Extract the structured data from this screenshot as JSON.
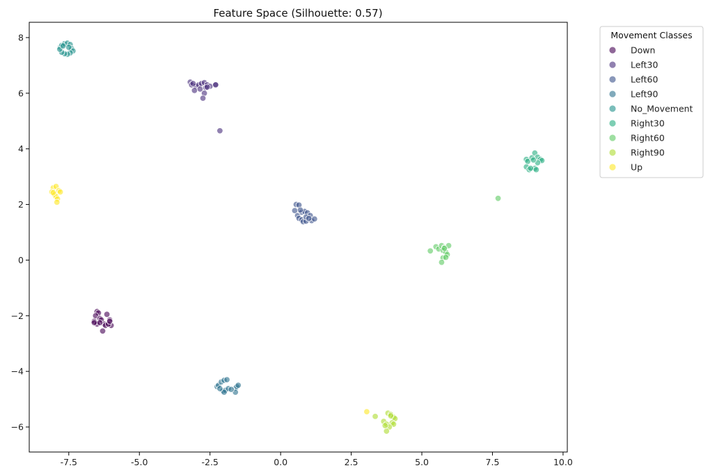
{
  "chart_data": {
    "type": "scatter",
    "title": "Feature Space (Silhouette: 0.57)",
    "xlabel": "",
    "ylabel": "",
    "xlim": [
      -8.9,
      10.15
    ],
    "ylim": [
      -6.9,
      8.55
    ],
    "xticks": [
      -7.5,
      -5.0,
      -2.5,
      0.0,
      2.5,
      5.0,
      7.5,
      10.0
    ],
    "yticks": [
      -6,
      -4,
      -2,
      0,
      2,
      4,
      6,
      8
    ],
    "grid": false,
    "legend_title": "Movement Classes",
    "legend_position": "outside-top-right",
    "series": [
      {
        "name": "Down",
        "color": "#440154",
        "points": [
          [
            -6.5,
            -1.85
          ],
          [
            -6.45,
            -1.9
          ],
          [
            -6.55,
            -2.0
          ],
          [
            -6.4,
            -2.1
          ],
          [
            -6.35,
            -2.15
          ],
          [
            -6.6,
            -2.2
          ],
          [
            -6.25,
            -2.3
          ],
          [
            -6.2,
            -2.35
          ],
          [
            -6.3,
            -2.55
          ],
          [
            -6.15,
            -1.95
          ],
          [
            -6.05,
            -2.15
          ],
          [
            -6.0,
            -2.35
          ],
          [
            -6.1,
            -2.3
          ],
          [
            -6.5,
            -2.3
          ],
          [
            -6.6,
            -2.25
          ],
          [
            -6.4,
            -2.25
          ],
          [
            -6.05,
            -2.2
          ]
        ]
      },
      {
        "name": "Left30",
        "color": "#472d7b",
        "points": [
          [
            -3.2,
            6.4
          ],
          [
            -3.15,
            6.3
          ],
          [
            -3.0,
            6.25
          ],
          [
            -2.9,
            6.3
          ],
          [
            -2.8,
            6.35
          ],
          [
            -2.7,
            6.38
          ],
          [
            -2.6,
            6.3
          ],
          [
            -2.5,
            6.25
          ],
          [
            -2.3,
            6.32
          ],
          [
            -2.3,
            6.3
          ],
          [
            -3.05,
            6.1
          ],
          [
            -2.85,
            6.15
          ],
          [
            -2.65,
            6.2
          ],
          [
            -2.7,
            6.0
          ],
          [
            -2.75,
            5.82
          ],
          [
            -2.6,
            6.22
          ],
          [
            -3.1,
            6.35
          ],
          [
            -2.15,
            4.65
          ]
        ]
      },
      {
        "name": "Left60",
        "color": "#3b528b",
        "points": [
          [
            0.55,
            2.0
          ],
          [
            0.65,
            1.98
          ],
          [
            0.5,
            1.78
          ],
          [
            0.6,
            1.6
          ],
          [
            0.65,
            1.5
          ],
          [
            0.75,
            1.45
          ],
          [
            0.8,
            1.38
          ],
          [
            0.9,
            1.4
          ],
          [
            0.75,
            1.72
          ],
          [
            0.85,
            1.75
          ],
          [
            0.95,
            1.7
          ],
          [
            1.05,
            1.6
          ],
          [
            1.1,
            1.42
          ],
          [
            1.2,
            1.48
          ],
          [
            0.7,
            1.8
          ],
          [
            0.9,
            1.55
          ],
          [
            1.0,
            1.5
          ]
        ]
      },
      {
        "name": "Left90",
        "color": "#2c728e",
        "points": [
          [
            -2.25,
            -4.55
          ],
          [
            -2.2,
            -4.5
          ],
          [
            -2.1,
            -4.38
          ],
          [
            -2.0,
            -4.32
          ],
          [
            -1.9,
            -4.3
          ],
          [
            -2.05,
            -4.7
          ],
          [
            -1.95,
            -4.68
          ],
          [
            -1.85,
            -4.62
          ],
          [
            -2.0,
            -4.75
          ],
          [
            -1.6,
            -4.6
          ],
          [
            -1.55,
            -4.55
          ],
          [
            -1.5,
            -4.5
          ],
          [
            -1.6,
            -4.75
          ],
          [
            -1.75,
            -4.65
          ],
          [
            -2.15,
            -4.62
          ]
        ]
      },
      {
        "name": "No_Movement",
        "color": "#21918c",
        "points": [
          [
            -7.8,
            7.65
          ],
          [
            -7.75,
            7.72
          ],
          [
            -7.65,
            7.78
          ],
          [
            -7.55,
            7.8
          ],
          [
            -7.45,
            7.75
          ],
          [
            -7.4,
            7.6
          ],
          [
            -7.35,
            7.52
          ],
          [
            -7.45,
            7.45
          ],
          [
            -7.55,
            7.4
          ],
          [
            -7.65,
            7.42
          ],
          [
            -7.75,
            7.47
          ],
          [
            -7.82,
            7.58
          ],
          [
            -7.7,
            7.7
          ],
          [
            -7.5,
            7.65
          ]
        ]
      },
      {
        "name": "Right30",
        "color": "#27ad81",
        "points": [
          [
            8.7,
            3.62
          ],
          [
            8.75,
            3.55
          ],
          [
            8.7,
            3.35
          ],
          [
            8.8,
            3.25
          ],
          [
            8.9,
            3.68
          ],
          [
            9.0,
            3.85
          ],
          [
            9.1,
            3.7
          ],
          [
            9.2,
            3.62
          ],
          [
            9.25,
            3.58
          ],
          [
            9.0,
            3.3
          ],
          [
            9.05,
            3.25
          ],
          [
            9.1,
            3.5
          ],
          [
            8.95,
            3.6
          ],
          [
            8.85,
            3.3
          ]
        ]
      },
      {
        "name": "Right60",
        "color": "#5ec962",
        "points": [
          [
            5.3,
            0.33
          ],
          [
            5.5,
            0.48
          ],
          [
            5.6,
            0.4
          ],
          [
            5.7,
            0.52
          ],
          [
            5.8,
            0.45
          ],
          [
            5.95,
            0.52
          ],
          [
            5.75,
            0.35
          ],
          [
            5.85,
            0.28
          ],
          [
            5.9,
            0.2
          ],
          [
            5.75,
            0.08
          ],
          [
            5.7,
            -0.08
          ],
          [
            5.85,
            0.1
          ],
          [
            5.8,
            0.42
          ],
          [
            7.7,
            2.22
          ]
        ]
      },
      {
        "name": "Right90",
        "color": "#addc30",
        "points": [
          [
            3.35,
            -5.62
          ],
          [
            3.65,
            -5.8
          ],
          [
            3.75,
            -5.9
          ],
          [
            3.8,
            -5.5
          ],
          [
            3.9,
            -5.55
          ],
          [
            4.0,
            -5.65
          ],
          [
            4.05,
            -5.7
          ],
          [
            3.95,
            -5.85
          ],
          [
            4.0,
            -5.9
          ],
          [
            3.85,
            -6.0
          ],
          [
            3.75,
            -6.15
          ],
          [
            3.7,
            -5.95
          ],
          [
            3.9,
            -5.6
          ]
        ]
      },
      {
        "name": "Up",
        "color": "#fde725",
        "points": [
          [
            -8.05,
            2.6
          ],
          [
            -7.95,
            2.65
          ],
          [
            -7.85,
            2.5
          ],
          [
            -8.1,
            2.45
          ],
          [
            -8.0,
            2.35
          ],
          [
            -7.95,
            2.28
          ],
          [
            -7.9,
            2.2
          ],
          [
            -7.92,
            2.08
          ],
          [
            -8.05,
            2.42
          ],
          [
            -7.8,
            2.45
          ],
          [
            3.05,
            -5.45
          ]
        ]
      }
    ]
  }
}
